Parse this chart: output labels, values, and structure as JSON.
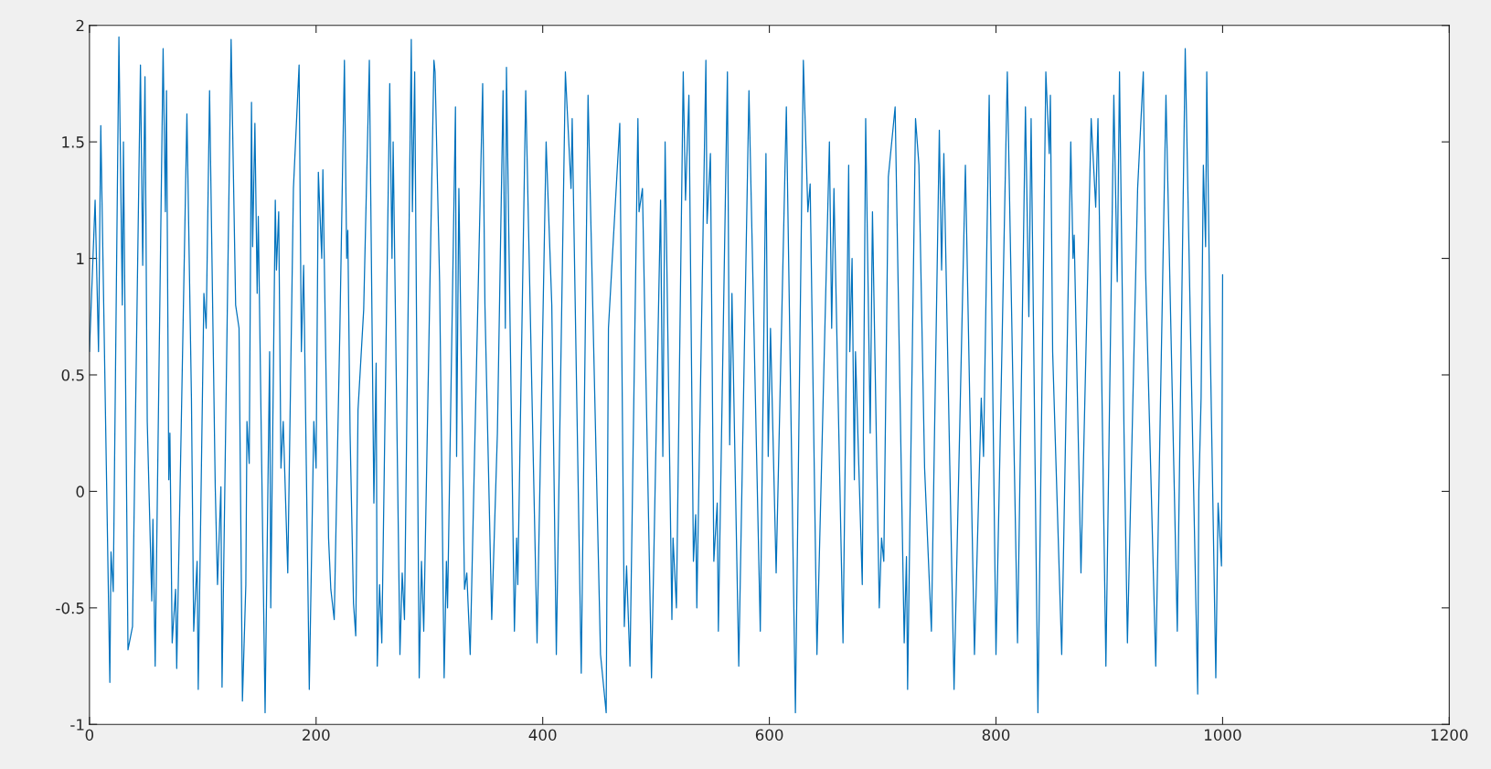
{
  "chart_data": {
    "type": "line",
    "x": [
      0,
      5,
      8,
      10,
      18,
      19,
      21,
      26,
      29,
      30,
      34,
      38,
      45,
      47,
      49,
      51,
      55,
      56,
      58,
      65,
      67,
      68,
      70,
      71,
      73,
      76,
      77,
      81,
      86,
      90,
      92,
      95,
      96,
      101,
      103,
      106,
      111,
      113,
      116,
      117,
      125,
      129,
      132,
      135,
      138,
      139,
      141,
      143,
      144,
      146,
      148,
      149,
      155,
      159,
      160,
      164,
      165,
      167,
      169,
      171,
      175,
      180,
      185,
      187,
      189,
      194,
      198,
      200,
      202,
      205,
      206,
      211,
      213,
      216,
      221,
      225,
      227,
      228,
      230,
      233,
      235,
      237,
      242,
      247,
      251,
      253,
      254,
      256,
      258,
      265,
      267,
      268,
      274,
      276,
      278,
      284,
      285,
      287,
      291,
      293,
      295,
      304,
      305,
      309,
      313,
      315,
      316,
      323,
      324,
      326,
      331,
      333,
      336,
      347,
      349,
      355,
      360,
      365,
      367,
      368,
      375,
      377,
      378,
      385,
      395,
      403,
      408,
      412,
      420,
      425,
      426,
      434,
      440,
      451,
      456,
      458,
      468,
      472,
      474,
      477,
      484,
      485,
      488,
      496,
      500,
      504,
      506,
      508,
      514,
      515,
      518,
      524,
      526,
      529,
      533,
      535,
      536,
      544,
      545,
      548,
      551,
      554,
      555,
      563,
      565,
      567,
      573,
      582,
      592,
      597,
      599,
      601,
      606,
      615,
      623,
      630,
      634,
      636,
      642,
      646,
      653,
      655,
      657,
      665,
      670,
      671,
      673,
      675,
      676,
      682,
      685,
      689,
      691,
      697,
      699,
      701,
      705,
      711,
      719,
      721,
      722,
      729,
      732,
      737,
      743,
      750,
      752,
      754,
      763,
      773,
      781,
      787,
      789,
      794,
      800,
      810,
      819,
      826,
      829,
      831,
      837,
      844,
      847,
      848,
      850,
      858,
      866,
      868,
      869,
      875,
      884,
      888,
      890,
      897,
      904,
      907,
      909,
      913,
      916,
      925,
      930,
      932,
      941,
      950,
      960,
      967,
      972,
      978,
      979,
      981,
      983,
      985,
      986,
      989,
      994,
      996,
      999,
      1000
    ],
    "series": [
      {
        "color": "#0072bd",
        "values": [
          0.6,
          1.25,
          0.6,
          1.57,
          -0.82,
          -0.26,
          -0.43,
          1.95,
          0.8,
          1.5,
          -0.68,
          -0.58,
          1.83,
          0.97,
          1.78,
          0.3,
          -0.47,
          -0.12,
          -0.75,
          1.9,
          1.2,
          1.72,
          0.05,
          0.25,
          -0.65,
          -0.42,
          -0.76,
          0.28,
          1.62,
          0.4,
          -0.6,
          -0.3,
          -0.85,
          0.85,
          0.7,
          1.72,
          0.02,
          -0.4,
          0.02,
          -0.84,
          1.94,
          0.8,
          0.7,
          -0.9,
          -0.4,
          0.3,
          0.12,
          1.67,
          1.05,
          1.58,
          0.85,
          1.18,
          -0.95,
          0.6,
          -0.5,
          1.25,
          0.95,
          1.2,
          0.1,
          0.3,
          -0.35,
          1.3,
          1.83,
          0.6,
          0.97,
          -0.85,
          0.3,
          0.1,
          1.37,
          1.0,
          1.38,
          -0.2,
          -0.42,
          -0.55,
          0.7,
          1.85,
          1.0,
          1.12,
          0.25,
          -0.48,
          -0.62,
          0.35,
          0.78,
          1.85,
          -0.05,
          0.55,
          -0.75,
          -0.4,
          -0.65,
          1.75,
          1.0,
          1.5,
          -0.7,
          -0.35,
          -0.55,
          1.94,
          1.2,
          1.8,
          -0.8,
          -0.3,
          -0.6,
          1.85,
          1.8,
          0.9,
          -0.8,
          -0.3,
          -0.5,
          1.65,
          0.15,
          1.3,
          -0.42,
          -0.35,
          -0.7,
          1.75,
          0.8,
          -0.55,
          0.25,
          1.72,
          0.7,
          1.82,
          -0.6,
          -0.2,
          -0.4,
          1.72,
          -0.65,
          1.5,
          0.8,
          -0.7,
          1.8,
          1.3,
          1.6,
          -0.78,
          1.7,
          -0.7,
          -0.95,
          0.7,
          1.58,
          -0.58,
          -0.32,
          -0.75,
          1.6,
          1.2,
          1.3,
          -0.8,
          0.22,
          1.25,
          0.15,
          1.5,
          -0.55,
          -0.2,
          -0.5,
          1.8,
          1.25,
          1.7,
          -0.3,
          -0.1,
          -0.5,
          1.85,
          1.15,
          1.45,
          -0.3,
          -0.05,
          -0.6,
          1.8,
          0.2,
          0.85,
          -0.75,
          1.72,
          -0.6,
          1.45,
          0.15,
          0.7,
          -0.35,
          1.65,
          -0.95,
          1.85,
          1.2,
          1.32,
          -0.7,
          0.1,
          1.5,
          0.7,
          1.3,
          -0.65,
          1.4,
          0.6,
          1.0,
          0.05,
          0.6,
          -0.4,
          1.6,
          0.25,
          1.2,
          -0.5,
          -0.2,
          -0.3,
          1.35,
          1.65,
          -0.65,
          -0.28,
          -0.85,
          1.6,
          1.4,
          0.1,
          -0.6,
          1.55,
          0.95,
          1.45,
          -0.85,
          1.4,
          -0.7,
          0.4,
          0.15,
          1.7,
          -0.7,
          1.8,
          -0.65,
          1.65,
          0.75,
          1.6,
          -0.95,
          1.8,
          1.45,
          1.7,
          0.6,
          -0.7,
          1.5,
          1.0,
          1.1,
          -0.35,
          1.6,
          1.22,
          1.6,
          -0.75,
          1.7,
          0.9,
          1.8,
          0.25,
          -0.65,
          1.3,
          1.8,
          0.95,
          -0.75,
          1.7,
          -0.6,
          1.9,
          0.6,
          -0.87,
          0.0,
          0.4,
          1.4,
          1.05,
          1.8,
          0.65,
          -0.8,
          -0.05,
          -0.32,
          0.93
        ]
      }
    ],
    "xlim": [
      0,
      1200
    ],
    "xticks": [
      0,
      200,
      400,
      600,
      800,
      1000,
      1200
    ],
    "ylim": [
      -1,
      2
    ],
    "yticks": [
      -1,
      -0.5,
      0,
      0.5,
      1,
      1.5,
      2
    ],
    "grid": false,
    "legend": false,
    "marker": "none",
    "line_style": "solid"
  }
}
